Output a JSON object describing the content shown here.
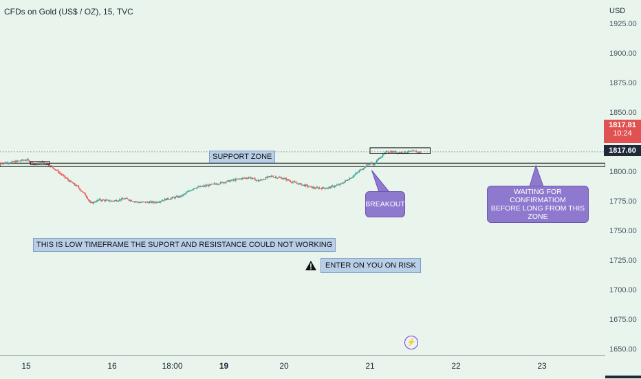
{
  "header": {
    "title": "CFDs on Gold (US$ / OZ), 15, TVC",
    "currency": "USD"
  },
  "price": {
    "last": "1817.81",
    "countdown": "10:24",
    "current": "1817.60"
  },
  "annotations": {
    "support_zone": "SUPPORT ZONE",
    "low_tf_note": "THIS IS LOW TIMEFRAME THE SUPORT AND RESISTANCE COULD NOT WORKING",
    "risk_note": "ENTER ON YOU ON RISK",
    "breakout": "BREAKOUT",
    "waiting_line1": "WAITING FOR CONFIRMATIOM",
    "waiting_line2": "BEFORE LONG FROM THIS ZONE"
  },
  "colors": {
    "up": "#26a69a",
    "down": "#ef5350",
    "accent": "#8e79cf",
    "badge_red": "#e05252",
    "badge_dark": "#1f2937"
  },
  "chart_data": {
    "type": "candlestick",
    "title": "CFDs on Gold (US$ / OZ), 15, TVC",
    "ylabel": "USD",
    "ylim": [
      1650,
      1925
    ],
    "y_ticks": [
      "1925.00",
      "1900.00",
      "1875.00",
      "1850.00",
      "1800.00",
      "1775.00",
      "1750.00",
      "1725.00",
      "1700.00",
      "1675.00",
      "1650.00"
    ],
    "x_ticks": [
      {
        "label": "15",
        "x": 0,
        "bold": false
      },
      {
        "label": "16",
        "x": 1,
        "bold": false
      },
      {
        "label": "18:00",
        "x": 1.7,
        "bold": false
      },
      {
        "label": "19",
        "x": 2.3,
        "bold": true
      },
      {
        "label": "20",
        "x": 3.0,
        "bold": false
      },
      {
        "label": "21",
        "x": 4.0,
        "bold": false
      },
      {
        "label": "22",
        "x": 5.0,
        "bold": false
      },
      {
        "label": "23",
        "x": 6.0,
        "bold": false
      }
    ],
    "xlim": [
      -0.3,
      6.7
    ],
    "price_path": [
      [
        -0.3,
        1808
      ],
      [
        -0.15,
        1809
      ],
      [
        0.0,
        1811
      ],
      [
        0.1,
        1807
      ],
      [
        0.2,
        1809
      ],
      [
        0.3,
        1805
      ],
      [
        0.4,
        1799
      ],
      [
        0.5,
        1793
      ],
      [
        0.6,
        1788
      ],
      [
        0.7,
        1780
      ],
      [
        0.75,
        1774
      ],
      [
        0.85,
        1777
      ],
      [
        1.0,
        1776
      ],
      [
        1.15,
        1778
      ],
      [
        1.3,
        1775
      ],
      [
        1.5,
        1775
      ],
      [
        1.65,
        1778
      ],
      [
        1.8,
        1780
      ],
      [
        1.95,
        1787
      ],
      [
        2.1,
        1789
      ],
      [
        2.3,
        1792
      ],
      [
        2.5,
        1795
      ],
      [
        2.6,
        1796
      ],
      [
        2.7,
        1793
      ],
      [
        2.85,
        1797
      ],
      [
        3.0,
        1795
      ],
      [
        3.1,
        1792
      ],
      [
        3.2,
        1790
      ],
      [
        3.35,
        1787
      ],
      [
        3.5,
        1787
      ],
      [
        3.65,
        1790
      ],
      [
        3.8,
        1797
      ],
      [
        3.9,
        1803
      ],
      [
        4.0,
        1808
      ],
      [
        4.05,
        1807
      ],
      [
        4.1,
        1812
      ],
      [
        4.2,
        1818
      ],
      [
        4.35,
        1817
      ],
      [
        4.5,
        1818
      ],
      [
        4.6,
        1817
      ]
    ],
    "support_zone": {
      "low": 1805,
      "high": 1808,
      "x_start": -0.3,
      "x_end": 6.7
    },
    "consolidation_box": {
      "low": 1816,
      "high": 1821,
      "x_start": 4.0,
      "x_end": 4.7
    },
    "current_price_line": 1817.6
  }
}
